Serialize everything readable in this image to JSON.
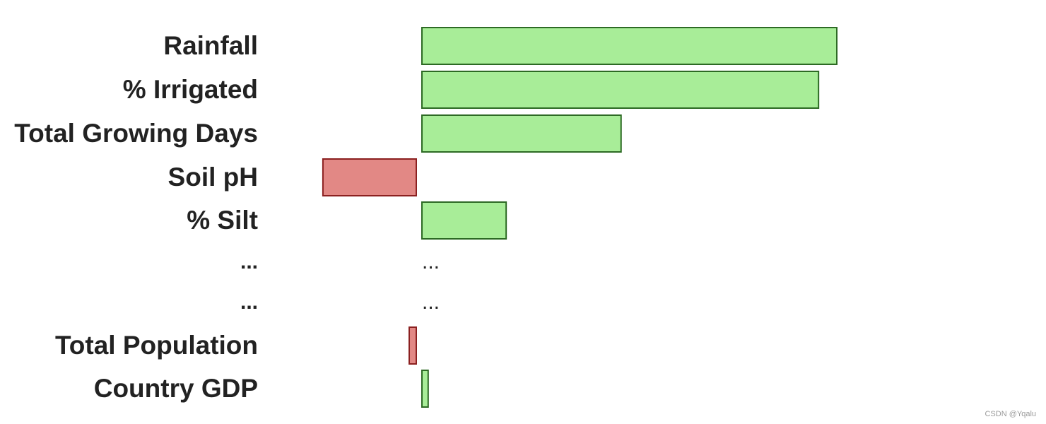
{
  "chart_data": {
    "type": "bar",
    "orientation": "horizontal",
    "categories": [
      "Rainfall",
      "% Irrigated",
      "Total Growing Days",
      "Soil pH",
      "% Silt",
      "...",
      "...",
      "Total Population",
      "Country GDP"
    ],
    "values": [
      100,
      95.6,
      48,
      -22.5,
      20.3,
      null,
      null,
      -1.7,
      1.5
    ],
    "value_placeholders": [
      "",
      "",
      "",
      "",
      "",
      "...",
      "...",
      "",
      ""
    ],
    "xlim": [
      -30,
      100
    ],
    "title": "",
    "xlabel": "",
    "ylabel": "",
    "grid": false,
    "legend": "none",
    "colors": {
      "positive_fill": "#a8ed98",
      "positive_stroke": "#2d6a24",
      "negative_fill": "#e28885",
      "negative_stroke": "#8b2020"
    }
  },
  "watermark": "CSDN @Yqalu"
}
